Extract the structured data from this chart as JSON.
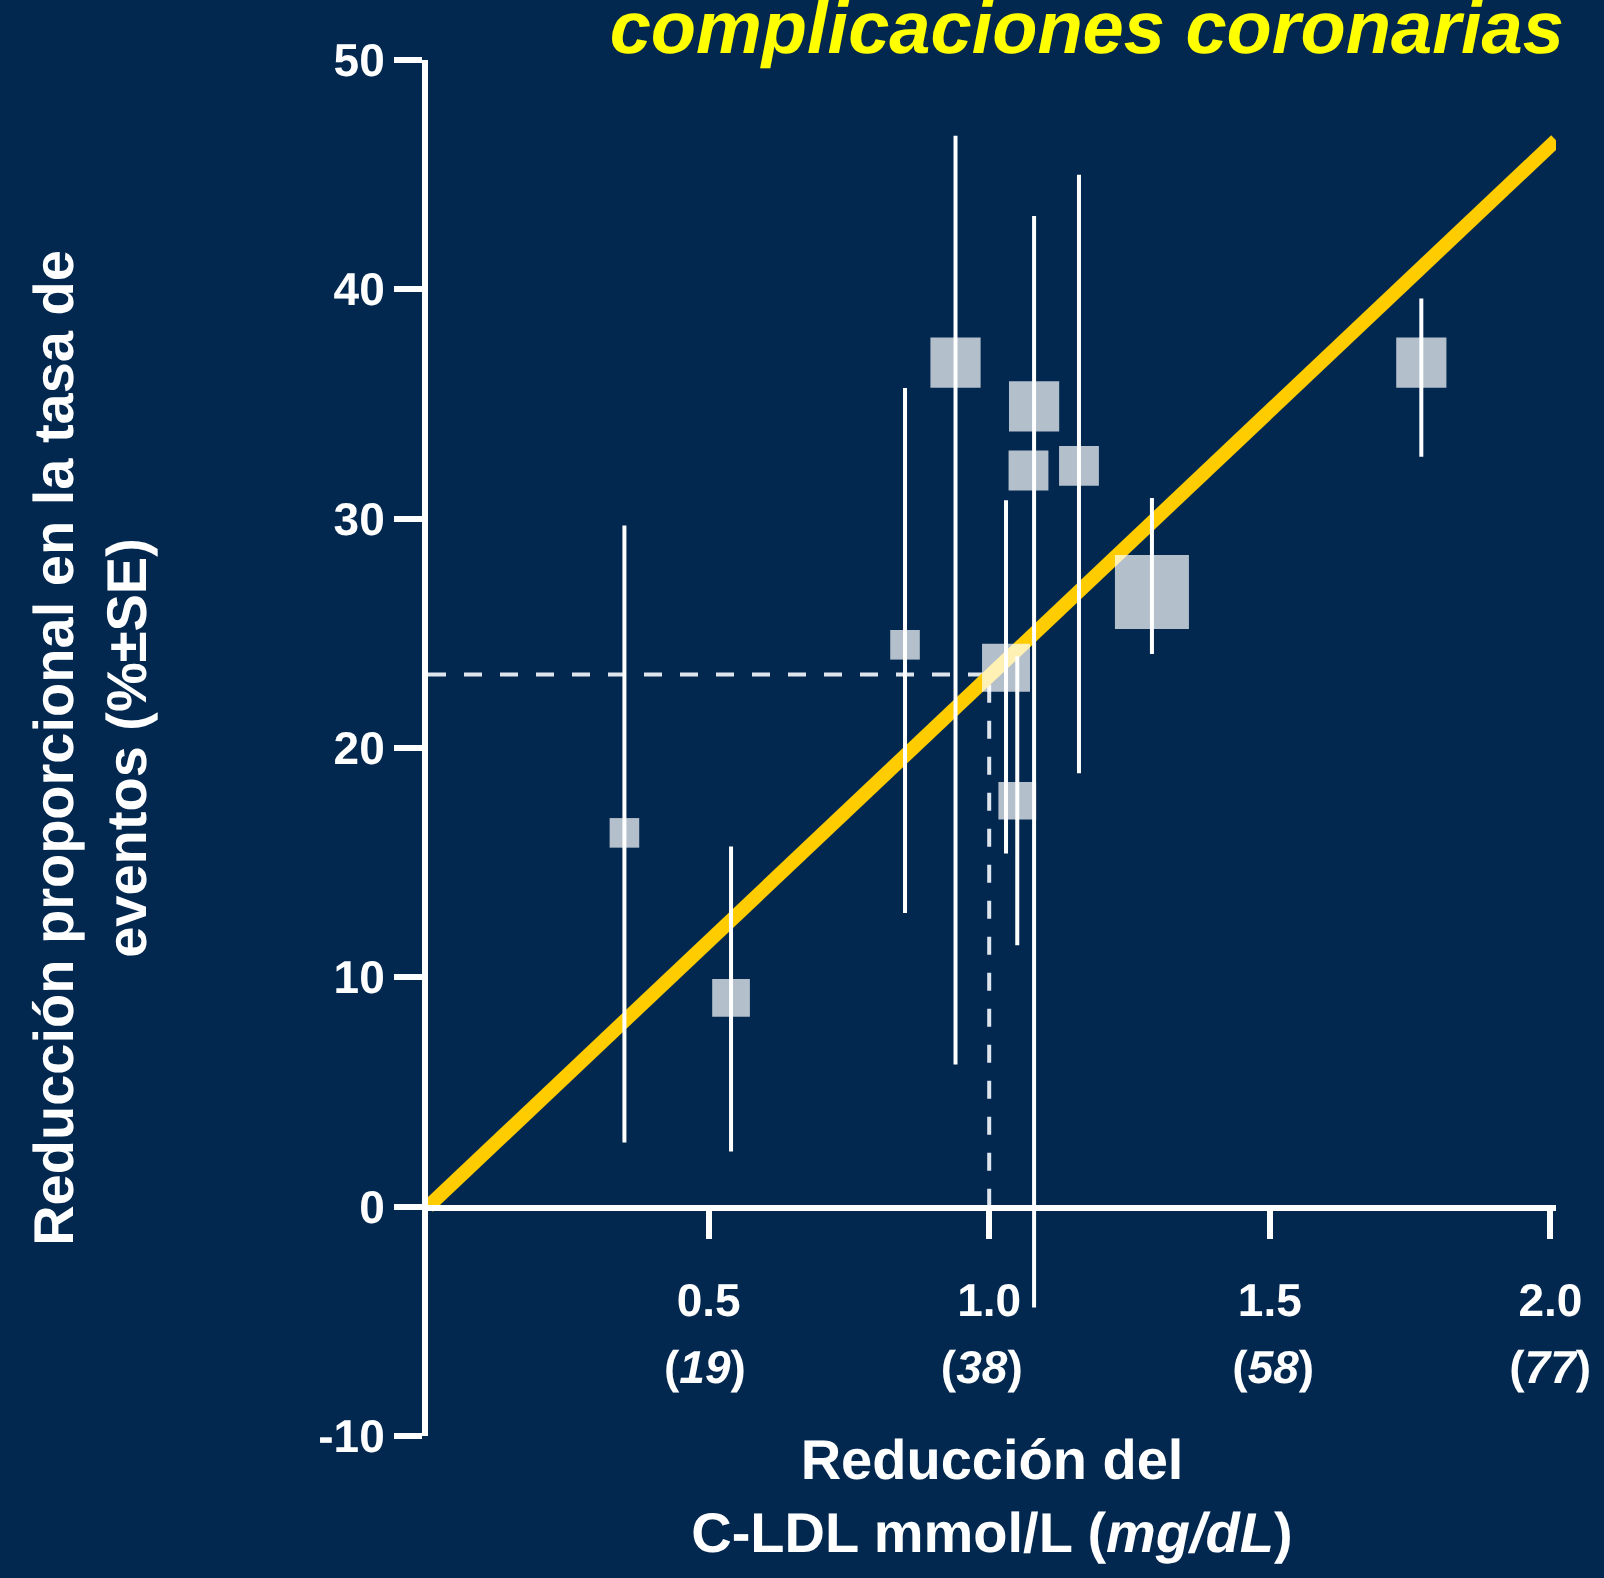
{
  "chart_data": {
    "type": "bubble",
    "title": "complicaciones coronarias",
    "xlabel": "Reducción del\nC-LDL mmol/L (mg/dL)",
    "ylabel": "Reducción proporcional en la tasa de\neventos (%±SE)",
    "xlim": [
      0,
      2.01
    ],
    "xticks": [
      {
        "value": 0.5,
        "label": "0.5"
      },
      {
        "value": 1.0,
        "label": "1.0"
      },
      {
        "value": 1.5,
        "label": "1.5"
      },
      {
        "value": 2.0,
        "label": "2.0"
      }
    ],
    "x2lim": [
      0,
      77.4
    ],
    "x2ticks": [
      {
        "value": 19,
        "label": "(19)"
      },
      {
        "value": 38,
        "label": "(38)"
      },
      {
        "value": 58,
        "label": "(58)"
      },
      {
        "value": 77,
        "label": "(77)"
      }
    ],
    "ylim": [
      -10,
      50
    ],
    "yticks": [
      -10,
      0,
      10,
      20,
      30,
      40,
      50
    ],
    "series": [
      {
        "type": "line",
        "color": "#ffcc00",
        "line_style": "solid",
        "x": [
          0,
          2.01
        ],
        "values": [
          0,
          46.5
        ]
      },
      {
        "color": "#ffffff",
        "marker": "square",
        "x": [
          0.35,
          0.54,
          0.85,
          0.94,
          1.03,
          1.05,
          1.08,
          1.07,
          1.16,
          1.29,
          1.77
        ],
        "values": [
          16.3,
          9.1,
          24.5,
          36.8,
          23.5,
          17.7,
          34.9,
          32.1,
          32.3,
          26.8,
          36.8
        ],
        "sizes": [
          0.16,
          0.26,
          0.16,
          0.46,
          0.42,
          0.26,
          0.46,
          0.29,
          0.29,
          1,
          0.46
        ],
        "errors": [
          [
            2.8,
            29.7
          ],
          [
            2.4,
            15.7
          ],
          [
            12.8,
            35.7
          ],
          [
            6.2,
            46.7
          ],
          [
            15.4,
            30.8
          ],
          [
            11.4,
            24.0
          ],
          [
            -4.4,
            43.2
          ],
          null,
          [
            18.9,
            45.0
          ],
          [
            24.1,
            30.9
          ],
          [
            32.7,
            39.6
          ]
        ]
      }
    ],
    "ref_lines": [
      {
        "axis": "x",
        "value": 1.0,
        "color": "#dfe5ec",
        "line_style": "dashed"
      },
      {
        "axis": "y",
        "value": 23.2,
        "color": "#dfe5ec",
        "line_style": "dashed"
      }
    ]
  }
}
